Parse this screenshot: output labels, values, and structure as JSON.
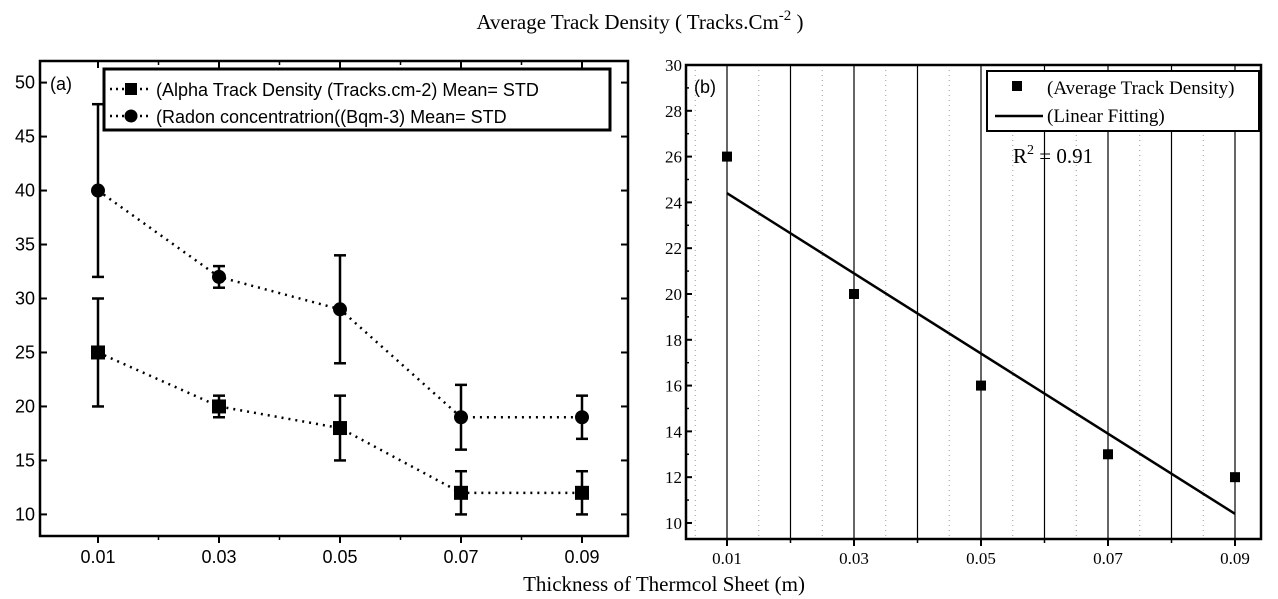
{
  "figure": {
    "title": "Average Track Density ( Tracks.Cm",
    "title_sup": "-2",
    "title_end": " )",
    "xlabel": "Thickness of Thermcol Sheet (m)"
  },
  "chart_data": [
    {
      "panel": "(a)",
      "type": "line",
      "x": [
        0.01,
        0.03,
        0.05,
        0.07,
        0.09
      ],
      "x_tick_labels": [
        "0.01",
        "0.03",
        "0.05",
        "0.07",
        "0.09"
      ],
      "y_tick_labels": [
        "10",
        "15",
        "20",
        "25",
        "30",
        "35",
        "40",
        "45",
        "50"
      ],
      "ylim": [
        8,
        52
      ],
      "grid": false,
      "legend_position": "top-right",
      "series": [
        {
          "name": "(Alpha Track Density (Tracks.cm-2) Mean= STD",
          "marker": "square",
          "line_style": "dotted",
          "values": [
            25,
            20,
            18,
            12,
            12
          ],
          "errors": [
            5,
            1,
            3,
            2,
            2
          ]
        },
        {
          "name": "(Radon concentratrion((Bqm-3) Mean= STD",
          "marker": "circle",
          "line_style": "dotted",
          "values": [
            40,
            32,
            29,
            19,
            19
          ],
          "errors": [
            8,
            1,
            5,
            3,
            2
          ]
        }
      ]
    },
    {
      "panel": "(b)",
      "type": "scatter",
      "x": [
        0.01,
        0.03,
        0.05,
        0.07,
        0.09
      ],
      "x_tick_labels": [
        "0.01",
        "0.03",
        "0.05",
        "0.07",
        "0.09"
      ],
      "y_tick_labels": [
        "10",
        "12",
        "14",
        "16",
        "18",
        "20",
        "22",
        "24",
        "26",
        "28",
        "30"
      ],
      "xlim": [
        0.0,
        0.1
      ],
      "ylim": [
        9.3,
        30
      ],
      "grid": true,
      "legend_position": "top-right",
      "series": [
        {
          "name": "(Average Track Density)",
          "marker": "square",
          "values": [
            26,
            20,
            16,
            13,
            12
          ]
        },
        {
          "name": "(Linear Fitting)",
          "type": "line",
          "x": [
            0.01,
            0.09
          ],
          "values": [
            24.4,
            10.4
          ]
        }
      ],
      "annotation": {
        "text_base": "R",
        "text_sup": "2",
        "text_rest": " = 0.91"
      }
    }
  ]
}
